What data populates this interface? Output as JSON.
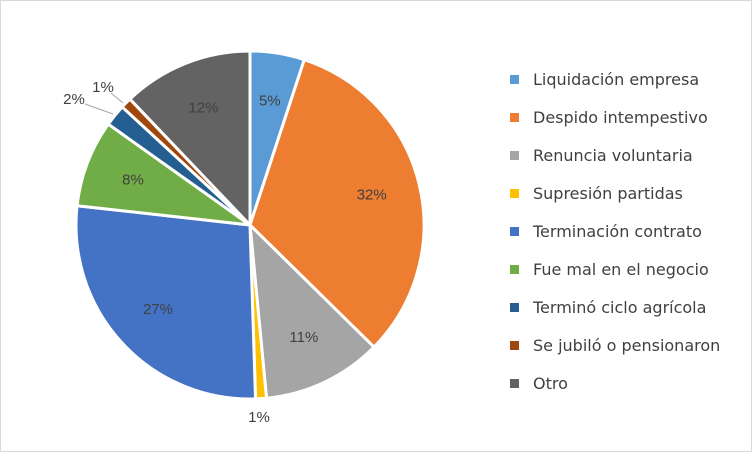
{
  "chart_data": {
    "type": "pie",
    "start_angle_deg": 0,
    "direction": "clockwise",
    "legend_position": "right",
    "slices": [
      {
        "label": "Liquidación empresa",
        "value": 5,
        "value_label": "5%",
        "color": "#5B9BD5"
      },
      {
        "label": "Despido intempestivo",
        "value": 32,
        "value_label": "32%",
        "color": "#ED7D31"
      },
      {
        "label": "Renuncia voluntaria",
        "value": 11,
        "value_label": "11%",
        "color": "#A5A5A5"
      },
      {
        "label": "Supresión partidas",
        "value": 1,
        "value_label": "1%",
        "color": "#FFC000"
      },
      {
        "label": "Terminación contrato",
        "value": 27,
        "value_label": "27%",
        "color": "#4472C4"
      },
      {
        "label": "Fue mal en el negocio",
        "value": 8,
        "value_label": "8%",
        "color": "#70AD47"
      },
      {
        "label": "Terminó ciclo agrícola",
        "value": 2,
        "value_label": "2%",
        "color": "#255E91"
      },
      {
        "label": "Se jubiló o pensionaron",
        "value": 1,
        "value_label": "1%",
        "color": "#9E480E"
      },
      {
        "label": "Otro",
        "value": 12,
        "value_label": "12%",
        "color": "#636363"
      }
    ]
  }
}
